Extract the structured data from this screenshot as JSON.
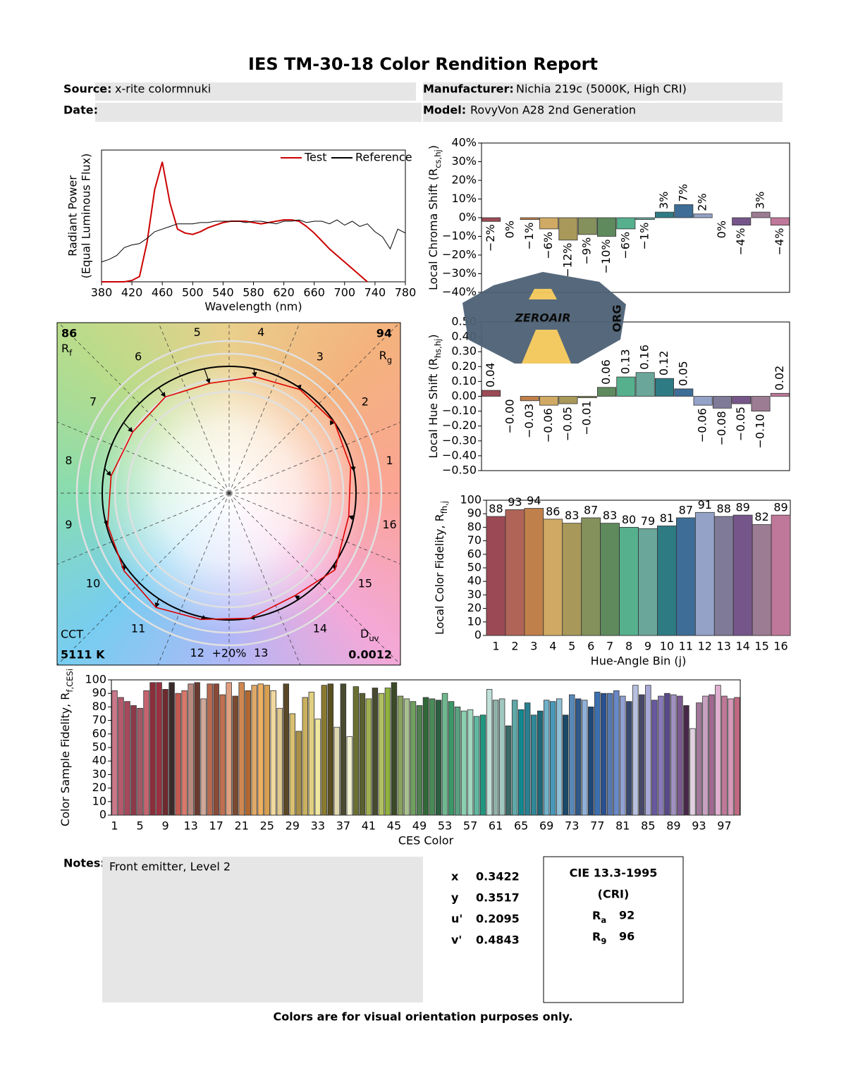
{
  "header": {
    "title": "IES TM-30-18 Color Rendition Report",
    "source_label": "Source:",
    "source": "x-rite colormnuki",
    "manufacturer_label": "Manufacturer:",
    "manufacturer": "Nichia 219c (5000K, High CRI)",
    "date_label": "Date:",
    "model_label": "Model:",
    "model": "RovyVon A28 2nd Generation"
  },
  "chart_data": [
    {
      "type": "line",
      "xlabel": "Wavelength (nm)",
      "ylabel": "Radiant Power",
      "ylabel2": "(Equal Luminous Flux)",
      "x": [
        380,
        390,
        400,
        410,
        420,
        430,
        440,
        450,
        460,
        470,
        480,
        490,
        500,
        510,
        520,
        530,
        540,
        550,
        560,
        570,
        580,
        590,
        600,
        610,
        620,
        630,
        640,
        650,
        660,
        670,
        680,
        690,
        700,
        710,
        720,
        730,
        740,
        750,
        760,
        770,
        780
      ],
      "series": [
        {
          "name": "Test",
          "color": "#cc0000",
          "values": [
            0,
            0,
            0,
            0,
            0.01,
            0.04,
            0.3,
            0.7,
            0.91,
            0.6,
            0.4,
            0.37,
            0.36,
            0.38,
            0.41,
            0.43,
            0.45,
            0.46,
            0.46,
            0.46,
            0.45,
            0.44,
            0.45,
            0.46,
            0.47,
            0.47,
            0.46,
            0.42,
            0.37,
            0.31,
            0.25,
            0.2,
            0.15,
            0.1,
            0.05,
            0,
            null,
            null,
            null,
            null,
            null
          ]
        },
        {
          "name": "Reference",
          "color": "#000000",
          "values": [
            0.15,
            0.17,
            0.2,
            0.26,
            0.28,
            0.29,
            0.33,
            0.38,
            0.4,
            0.42,
            0.44,
            0.44,
            0.44,
            0.45,
            0.45,
            0.46,
            0.46,
            0.46,
            0.46,
            0.45,
            0.46,
            0.46,
            0.45,
            0.44,
            0.46,
            0.46,
            0.47,
            0.45,
            0.46,
            0.46,
            0.44,
            0.47,
            0.43,
            0.46,
            0.42,
            0.44,
            0.38,
            0.34,
            0.25,
            0.4,
            0.37
          ]
        }
      ],
      "xlim": [
        380,
        780
      ],
      "xticks": [
        380,
        420,
        460,
        500,
        540,
        580,
        620,
        660,
        700,
        740,
        780
      ],
      "ylim": [
        0,
        1
      ],
      "legend": "upper right"
    },
    {
      "type": "vector",
      "categories": [
        1,
        2,
        3,
        4,
        5,
        6,
        7,
        8,
        9,
        10,
        11,
        12,
        13,
        14,
        15,
        16
      ],
      "rf": {
        "label": "R",
        "sub": "f",
        "value": 86
      },
      "rg": {
        "label": "R",
        "sub": "g",
        "value": 94
      },
      "cct": {
        "label": "CCT",
        "value": 5111,
        "value_label": "5111 K"
      },
      "duv": {
        "label": "D",
        "sub": "uv",
        "value": 0.0012
      },
      "scale_label": "+20%"
    },
    {
      "type": "bar",
      "ylabel": {
        "text": "Local Chroma Shift (R",
        "sub": "cs,hj",
        "end": ")"
      },
      "values": [
        -2,
        0,
        -1,
        -6,
        -12,
        -9,
        -10,
        -6,
        -1,
        3,
        7,
        2,
        0,
        -4,
        3,
        -4
      ],
      "value_labels": [
        "−2%",
        "0%",
        "−1%",
        "−6%",
        "−12%",
        "−9%",
        "−10%",
        "−6%",
        "−1%",
        "3%",
        "7%",
        "2%",
        "0%",
        "−4%",
        "3%",
        "−4%"
      ],
      "data_labels": "vertical",
      "colors": [
        "#9b4a55",
        "#b06458",
        "#c0804b",
        "#d0aa65",
        "#a8995a",
        "#85915d",
        "#5f8a5e",
        "#56b08e",
        "#6aa79a",
        "#2f7b84",
        "#3e6e97",
        "#94a2c8",
        "#7e7a98",
        "#76568a",
        "#9c7c92",
        "#c0789a"
      ],
      "ylim": [
        -40,
        40
      ],
      "yticks": [
        {
          "value": -40,
          "label": "−40%"
        },
        {
          "value": -30,
          "label": "−30%"
        },
        {
          "value": -20,
          "label": "−20%"
        },
        {
          "value": -10,
          "label": "−10%"
        },
        {
          "value": 0,
          "label": "0%"
        },
        {
          "value": 10,
          "label": "10%"
        },
        {
          "value": 20,
          "label": "20%"
        },
        {
          "value": 30,
          "label": "30%"
        },
        {
          "value": 40,
          "label": "40%"
        }
      ]
    },
    {
      "type": "bar",
      "ylabel": {
        "text": "Local Hue Shift (R",
        "sub": "hs,hj",
        "end": ")"
      },
      "values": [
        0.04,
        0,
        -0.03,
        -0.06,
        -0.05,
        -0.01,
        0.06,
        0.13,
        0.16,
        0.12,
        0.05,
        -0.06,
        -0.08,
        -0.05,
        -0.1,
        0.02
      ],
      "value_labels": [
        "0.04",
        "−0.00",
        "−0.03",
        "−0.06",
        "−0.05",
        "−0.01",
        "0.06",
        "0.13",
        "0.16",
        "0.12",
        "0.05",
        "−0.06",
        "−0.08",
        "−0.05",
        "−0.10",
        "0.02"
      ],
      "data_labels": "vertical",
      "colors": [
        "#9b4a55",
        "#b06458",
        "#c0804b",
        "#d0aa65",
        "#a8995a",
        "#85915d",
        "#5f8a5e",
        "#56b08e",
        "#6aa79a",
        "#2f7b84",
        "#3e6e97",
        "#94a2c8",
        "#7e7a98",
        "#76568a",
        "#9c7c92",
        "#c0789a"
      ],
      "ylim": [
        -0.5,
        0.5
      ],
      "yticks": [
        {
          "value": -0.5,
          "label": "−0.50"
        },
        {
          "value": -0.4,
          "label": "−0.40"
        },
        {
          "value": -0.3,
          "label": "−0.30"
        },
        {
          "value": -0.2,
          "label": "−0.20"
        },
        {
          "value": -0.1,
          "label": "−0.10"
        },
        {
          "value": 0,
          "label": "0.00"
        },
        {
          "value": 0.1,
          "label": "0.10"
        },
        {
          "value": 0.2,
          "label": "0.20"
        },
        {
          "value": 0.3,
          "label": "0.30"
        },
        {
          "value": 0.4,
          "label": "0.40"
        },
        {
          "value": 0.5,
          "label": "0.50"
        }
      ]
    },
    {
      "type": "bar",
      "xlabel": "Hue-Angle Bin (j)",
      "ylabel": {
        "text": "Local Color Fidelity, R",
        "sub": "fh,j"
      },
      "categories": [
        1,
        2,
        3,
        4,
        5,
        6,
        7,
        8,
        9,
        10,
        11,
        12,
        13,
        14,
        15,
        16
      ],
      "values": [
        88,
        93,
        94,
        86,
        83,
        87,
        83,
        80,
        79,
        81,
        87,
        91,
        88,
        89,
        82,
        89
      ],
      "data_labels": "horizontal",
      "colors": [
        "#9b4a55",
        "#b06458",
        "#c0804b",
        "#d0aa65",
        "#a8995a",
        "#85915d",
        "#5f8a5e",
        "#56b08e",
        "#6aa79a",
        "#2f7b84",
        "#3e6e97",
        "#94a2c8",
        "#7e7a98",
        "#76568a",
        "#9c7c92",
        "#c0789a"
      ],
      "ylim": [
        0,
        100
      ],
      "yticks": [
        0,
        10,
        20,
        30,
        40,
        50,
        60,
        70,
        80,
        90,
        100
      ]
    },
    {
      "type": "bar",
      "xlabel": "CES Color",
      "ylabel": {
        "text": "Color Sample Fidelity, R",
        "sub": "f,CESi"
      },
      "categories": [
        1,
        null,
        null,
        null,
        5,
        null,
        null,
        null,
        9,
        null,
        null,
        null,
        13,
        null,
        null,
        null,
        17,
        null,
        null,
        null,
        21,
        null,
        null,
        null,
        25,
        null,
        null,
        null,
        29,
        null,
        null,
        null,
        33,
        null,
        null,
        null,
        37,
        null,
        null,
        null,
        41,
        null,
        null,
        null,
        45,
        null,
        null,
        null,
        49,
        null,
        null,
        null,
        53,
        null,
        null,
        null,
        57,
        null,
        null,
        null,
        61,
        null,
        null,
        null,
        65,
        null,
        null,
        null,
        69,
        null,
        null,
        null,
        73,
        null,
        null,
        null,
        77,
        null,
        null,
        null,
        81,
        null,
        null,
        null,
        85,
        null,
        null,
        null,
        89,
        null,
        null,
        null,
        93,
        null,
        null,
        null,
        97,
        null,
        null
      ],
      "values": [
        92,
        87,
        84,
        81,
        79,
        92,
        98,
        98,
        93,
        98,
        90,
        92,
        97,
        98,
        86,
        97,
        97,
        89,
        98,
        88,
        98,
        92,
        96,
        97,
        96,
        92,
        79,
        97,
        75,
        62,
        87,
        91,
        71,
        96,
        97,
        65,
        97,
        58,
        95,
        90,
        86,
        94,
        90,
        94,
        98,
        88,
        86,
        84,
        81,
        87,
        86,
        85,
        90,
        84,
        80,
        77,
        78,
        73,
        74,
        93,
        85,
        86,
        66,
        85,
        78,
        83,
        74,
        77,
        85,
        84,
        86,
        74,
        89,
        86,
        85,
        80,
        91,
        90,
        90,
        92,
        88,
        84,
        96,
        89,
        96,
        85,
        88,
        90,
        89,
        88,
        81,
        64,
        83,
        88,
        89,
        96,
        88,
        86,
        87
      ],
      "colors": [
        "#c9788a",
        "#b45a6c",
        "#a7485c",
        "#8c3a4a",
        "#a25865",
        "#c46470",
        "#8a2e3a",
        "#9a3040",
        "#6e2a30",
        "#3a2a2a",
        "#c25a50",
        "#d8786a",
        "#b8887c",
        "#6a3a30",
        "#d0a898",
        "#b86a50",
        "#8a4a38",
        "#c07050",
        "#e0a080",
        "#7a4a30",
        "#d08850",
        "#b06830",
        "#e0a868",
        "#f0b060",
        "#d8a050",
        "#f0d8a0",
        "#e0c890",
        "#5a4828",
        "#d8c070",
        "#a89048",
        "#c8b060",
        "#e0d080",
        "#f0e8a0",
        "#8a7a30",
        "#5a5020",
        "#e0d8b0",
        "#4a4a30",
        "#f0f0d0",
        "#6a7030",
        "#5a6030",
        "#a0b050",
        "#484a30",
        "#b0c060",
        "#90b040",
        "#3a4a28",
        "#8aa060",
        "#a8c090",
        "#70a060",
        "#508050",
        "#306838",
        "#4a8a58",
        "#2a6040",
        "#70b890",
        "#3a9868",
        "#5aa080",
        "#8ad0b0",
        "#a0d8c0",
        "#60b8a0",
        "#209880",
        "#c0e0d8",
        "#90b0a8",
        "#a0c8c0",
        "#3a6a68",
        "#60a8a8",
        "#108890",
        "#2a8090",
        "#308898",
        "#206878",
        "#70b0c8",
        "#4898b8",
        "#90c0d8",
        "#1a4868",
        "#5888b8",
        "#305888",
        "#90b0d8",
        "#204878",
        "#3a70b0",
        "#2a5090",
        "#5878b0",
        "#6888c8",
        "#90a0d0",
        "#384870",
        "#b8c0e0",
        "#484868",
        "#a8a8d8",
        "#6858a0",
        "#8878b8",
        "#584888",
        "#a090c0",
        "#7a5890",
        "#482848",
        "#e0d0e0",
        "#a07898",
        "#c8a0c0",
        "#a06890",
        "#e0b0d0",
        "#c07898",
        "#d898b8",
        "#c06880"
      ],
      "ylim": [
        0,
        100
      ],
      "yticks": [
        0,
        10,
        20,
        30,
        40,
        50,
        60,
        70,
        80,
        90,
        100
      ]
    }
  ],
  "notes": {
    "label": "Notes:",
    "text": "Front emitter, Level 2"
  },
  "chromaticity": [
    {
      "label": "x",
      "value": 0.3422
    },
    {
      "label": "y",
      "value": 0.3517
    },
    {
      "label": "u'",
      "value": 0.2095
    },
    {
      "label": "v'",
      "value": 0.4843
    }
  ],
  "cri": {
    "title": "CIE 13.3-1995",
    "subtitle": "(CRI)",
    "ra": {
      "label": "R",
      "sub": "a",
      "value": 92
    },
    "r9": {
      "label": "R",
      "sub": "9",
      "value": 96
    }
  },
  "watermark": {
    "text": "ZEROAIR",
    "suffix": "ORG"
  },
  "footer": "Colors are for visual orientation purposes only."
}
